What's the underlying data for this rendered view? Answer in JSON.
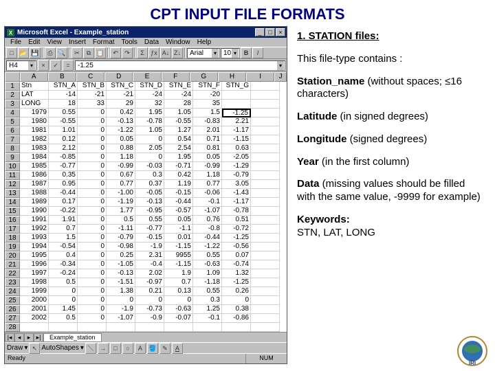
{
  "page_title": "CPT INPUT FILE FORMATS",
  "excel": {
    "title": "Microsoft Excel - Example_station",
    "menu": [
      "File",
      "Edit",
      "View",
      "Insert",
      "Format",
      "Tools",
      "Data",
      "Window",
      "Help"
    ],
    "font_combo": "Arial",
    "size_combo": "10",
    "namebox": "H4",
    "formula": "-1.25",
    "col_letters": [
      "A",
      "B",
      "C",
      "D",
      "E",
      "F",
      "G",
      "H",
      "I",
      "J"
    ],
    "row1": [
      "Stn",
      "STN_A",
      "STN_B",
      "STN_C",
      "STN_D",
      "STN_E",
      "STN_F",
      "STN_G",
      ""
    ],
    "row2": [
      "LAT",
      "-14",
      "-21",
      "-21",
      "-24",
      "-24",
      "-20",
      "",
      ""
    ],
    "row3": [
      "LONG",
      "18",
      "33",
      "29",
      "32",
      "28",
      "35",
      "",
      ""
    ],
    "data_rows": [
      [
        "1979",
        "0.55",
        "0",
        "0.42",
        "1.95",
        "1.05",
        "1.5",
        "-1.25",
        ""
      ],
      [
        "1980",
        "-0.55",
        "0",
        "-0.13",
        "-0.78",
        "-0.55",
        "-0.83",
        "2.21",
        ""
      ],
      [
        "1981",
        "1.01",
        "0",
        "-1.22",
        "1.05",
        "1.27",
        "2.01",
        "-1.17",
        ""
      ],
      [
        "1982",
        "0.12",
        "0",
        "0.05",
        "0",
        "0.54",
        "0.71",
        "-1.15",
        ""
      ],
      [
        "1983",
        "2.12",
        "0",
        "0.88",
        "2.05",
        "2.54",
        "0.81",
        "0.63",
        ""
      ],
      [
        "1984",
        "-0.85",
        "0",
        "1.18",
        "0",
        "1.95",
        "0.05",
        "-2.05",
        ""
      ],
      [
        "1985",
        "-0.77",
        "0",
        "-0.99",
        "-0.03",
        "-0.71",
        "-0.99",
        "-1.29",
        ""
      ],
      [
        "1986",
        "0.35",
        "0",
        "0.67",
        "0.3",
        "0.42",
        "1.18",
        "-0.79",
        ""
      ],
      [
        "1987",
        "0.95",
        "0",
        "0.77",
        "0.37",
        "1.19",
        "0.77",
        "3.05",
        ""
      ],
      [
        "1988",
        "-0.44",
        "0",
        "-1.00",
        "-0.05",
        "-0.15",
        "-0.06",
        "-1.43",
        ""
      ],
      [
        "1989",
        "0.17",
        "0",
        "-1.19",
        "-0.13",
        "-0.44",
        "-0.1",
        "-1.17",
        ""
      ],
      [
        "1990",
        "-0.22",
        "0",
        "1.77",
        "-0.95",
        "-0.57",
        "-1.07",
        "-0.78",
        ""
      ],
      [
        "1991",
        "1.91",
        "0",
        "0.5",
        "0.55",
        "0.05",
        "0.76",
        "0.51",
        ""
      ],
      [
        "1992",
        "0.7",
        "0",
        "-1.11",
        "-0.77",
        "-1.1",
        "-0.8",
        "-0.72",
        ""
      ],
      [
        "1993",
        "1.5",
        "0",
        "-0.79",
        "-0.15",
        "0.01",
        "-0.44",
        "-1.25",
        ""
      ],
      [
        "1994",
        "-0.54",
        "0",
        "-0.98",
        "-1.9",
        "-1.15",
        "-1.22",
        "-0.56",
        ""
      ],
      [
        "1995",
        "0.4",
        "0",
        "0.25",
        "2.31",
        "9955",
        "0.55",
        "0.07",
        ""
      ],
      [
        "1996",
        "-0.34",
        "0",
        "-1.05",
        "-0.4",
        "-1.15",
        "-0.63",
        "-0.74",
        ""
      ],
      [
        "1997",
        "-0.24",
        "0",
        "-0.13",
        "2.02",
        "1.9",
        "1.09",
        "1.32",
        ""
      ],
      [
        "1998",
        "0.5",
        "0",
        "-1.51",
        "-0.97",
        "0.7",
        "-1.18",
        "-1.25",
        ""
      ],
      [
        "1999",
        "0",
        "0",
        "1.38",
        "0.21",
        "0.13",
        "0.55",
        "0.26",
        ""
      ],
      [
        "2000",
        "0",
        "0",
        "0",
        "0",
        "0",
        "0.3",
        "0",
        ""
      ],
      [
        "2001",
        "1.45",
        "0",
        "-1.9",
        "-0.73",
        "-0.63",
        "1.25",
        "0.38",
        ""
      ],
      [
        "2002",
        "0.5",
        "0",
        "-1.07",
        "-0.9",
        "-0.07",
        "-0.1",
        "-0.86",
        ""
      ]
    ],
    "sheet_tab": "Example_station",
    "draw_label": "Draw",
    "autoshapes_label": "AutoShapes",
    "status_left": "Ready",
    "status_right": "NUM"
  },
  "desc": {
    "heading": "1. STATION files:",
    "intro": "This file-type contains :",
    "items": [
      {
        "b": "Station_name",
        "t": " (without spaces; ≤16 characters)"
      },
      {
        "b": "Latitude",
        "t": " (in signed degrees)"
      },
      {
        "b": "Longitude",
        "t": " (signed degrees)"
      },
      {
        "b": "Year",
        "t": " (in the first column)"
      },
      {
        "b": "Data",
        "t": " (missing values should be filled with the same value, -9999 for example)"
      }
    ],
    "kw_label": "Keywords:",
    "kw_val": "STN, LAT, LONG"
  }
}
